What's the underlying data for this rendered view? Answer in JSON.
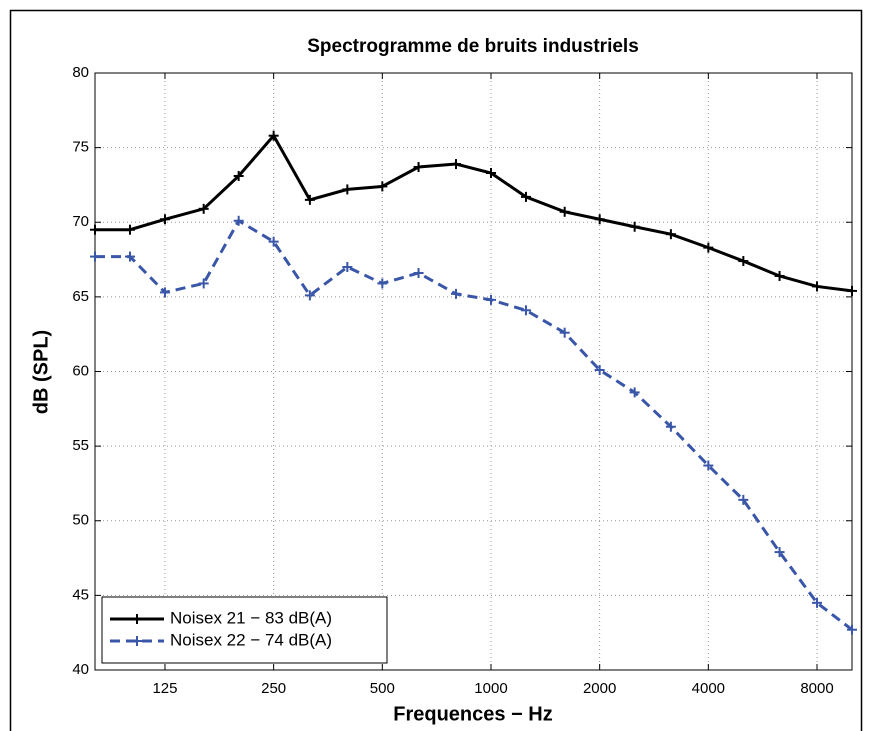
{
  "chart_data": {
    "type": "line",
    "title": "Spectrogramme de bruits industriels",
    "xlabel": "Frequences − Hz",
    "ylabel": "dB (SPL)",
    "x": [
      80,
      100,
      125,
      160,
      200,
      250,
      315,
      400,
      500,
      630,
      800,
      1000,
      1250,
      1600,
      2000,
      2500,
      3150,
      4000,
      5000,
      6300,
      8000,
      10000
    ],
    "series": [
      {
        "name": "Noisex 21 − 83 dB(A)",
        "color": "#000000",
        "dash": "solid",
        "values": [
          69.5,
          69.5,
          70.2,
          70.9,
          73.1,
          75.8,
          71.5,
          72.2,
          72.4,
          73.7,
          73.9,
          73.3,
          71.7,
          70.7,
          70.2,
          69.7,
          69.2,
          68.3,
          67.4,
          66.4,
          65.7,
          65.4
        ]
      },
      {
        "name": "Noisex 22 − 74 dB(A)",
        "color": "#3a56a8",
        "dash": "dashed",
        "values": [
          67.7,
          67.7,
          65.3,
          65.9,
          70.1,
          68.7,
          65.1,
          67.0,
          65.9,
          66.6,
          65.2,
          64.8,
          64.1,
          62.6,
          60.1,
          58.6,
          56.3,
          53.7,
          51.4,
          47.9,
          44.5,
          42.7
        ]
      }
    ],
    "xscale": "log",
    "xlim": [
      80,
      10000
    ],
    "xticks": [
      125,
      250,
      500,
      1000,
      2000,
      4000,
      8000
    ],
    "ylim": [
      40,
      80
    ],
    "yticks": [
      40,
      45,
      50,
      55,
      60,
      65,
      70,
      75,
      80
    ],
    "grid": true,
    "legend": "lower left"
  }
}
